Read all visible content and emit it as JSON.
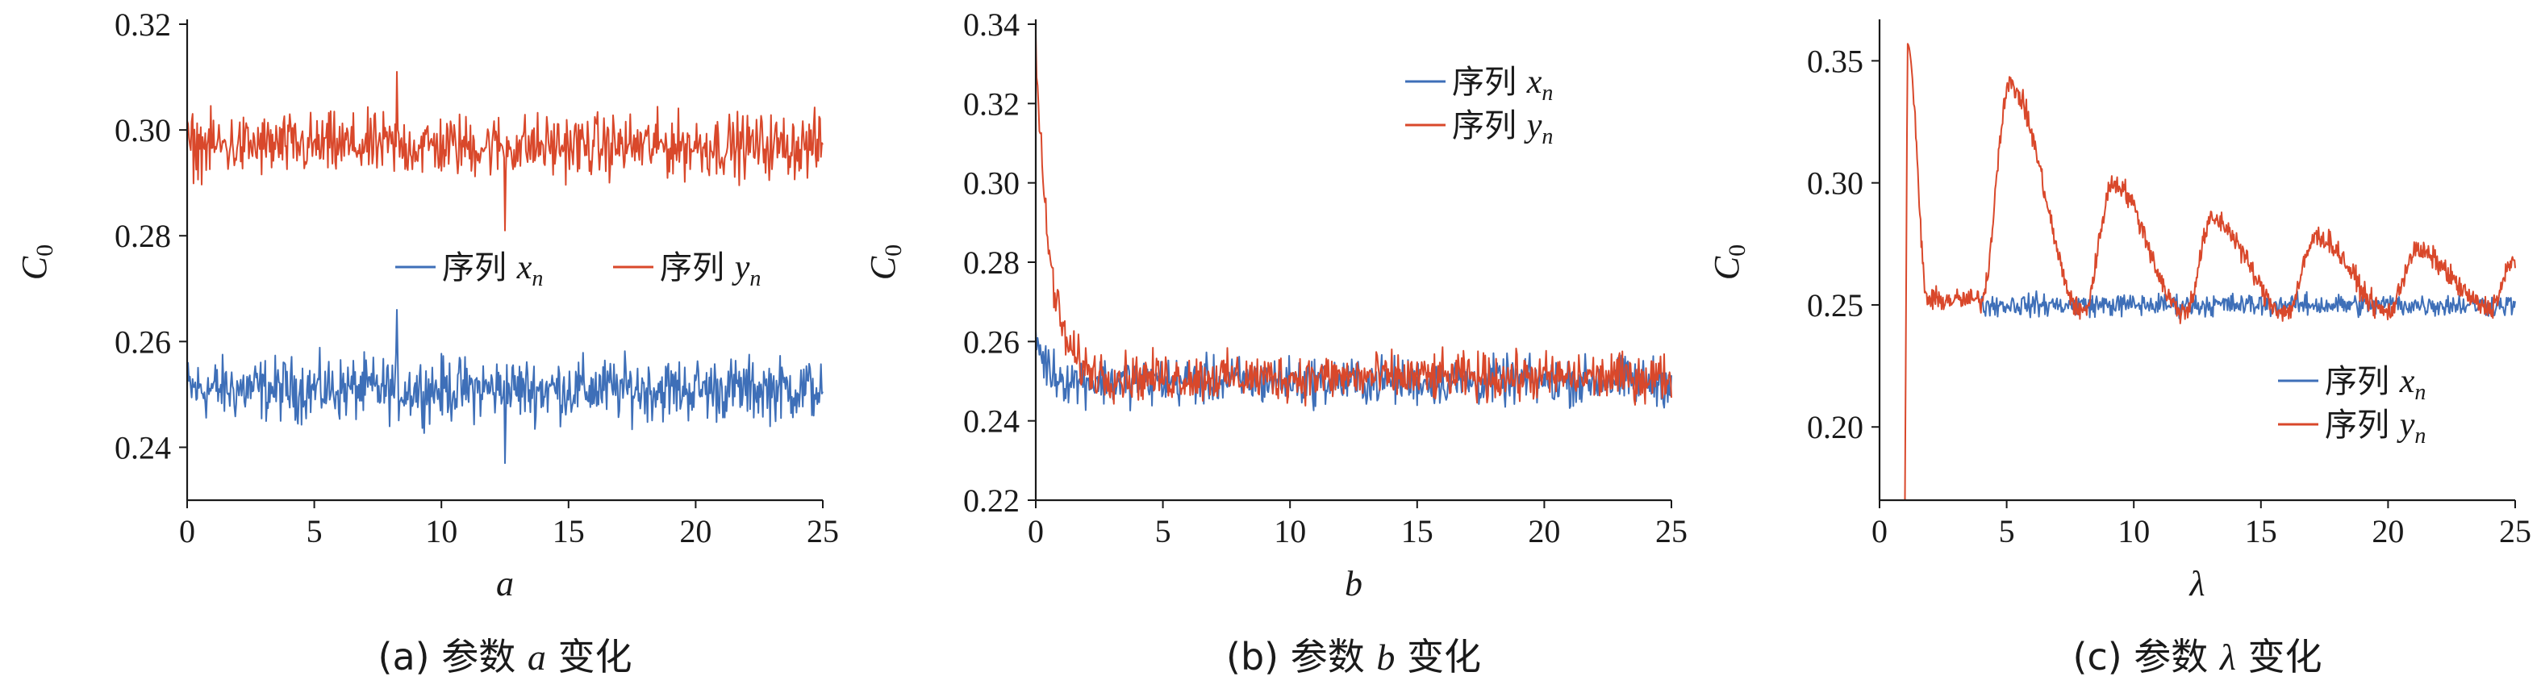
{
  "colors": {
    "x_series": "#3e6fb8",
    "y_series": "#d9482b",
    "axis": "#1a1a1a"
  },
  "chart_data": [
    {
      "type": "line",
      "caption": {
        "prefix": "(a) 参数 ",
        "var": "a",
        "suffix": " 变化"
      },
      "xlabel": "a",
      "ylabel": {
        "main": "C",
        "sub": "0"
      },
      "xlim": [
        0,
        25
      ],
      "ylim": [
        0.23,
        0.32
      ],
      "xticks": [
        0,
        5,
        10,
        15,
        20,
        25
      ],
      "xtick_labels": [
        "0",
        "5",
        "10",
        "15",
        "20",
        "25"
      ],
      "yticks": [
        0.24,
        0.26,
        0.28,
        0.3,
        0.32
      ],
      "ytick_labels": [
        "0.24",
        "0.26",
        "0.28",
        "0.30",
        "0.32"
      ],
      "legend": {
        "position": "middle-right",
        "layout": "horizontal",
        "entries": [
          {
            "label": "序列",
            "var": "x",
            "sub": "n"
          },
          {
            "label": "序列",
            "var": "y",
            "sub": "n"
          }
        ]
      },
      "series": [
        {
          "name": "序列 xn",
          "color": "#3e6fb8",
          "model": {
            "type": "noise",
            "mean": 0.251,
            "amplitude": 0.0045,
            "extreme_max": 0.266,
            "extreme_min": 0.237,
            "points": 700
          }
        },
        {
          "name": "序列 yn",
          "color": "#d9482b",
          "model": {
            "type": "noise",
            "mean": 0.297,
            "amplitude": 0.0045,
            "extreme_max": 0.311,
            "extreme_min": 0.281,
            "points": 700
          }
        }
      ]
    },
    {
      "type": "line",
      "caption": {
        "prefix": "(b) 参数 ",
        "var": "b",
        "suffix": " 变化"
      },
      "xlabel": "b",
      "ylabel": {
        "main": "C",
        "sub": "0"
      },
      "xlim": [
        0,
        25
      ],
      "ylim": [
        0.22,
        0.34
      ],
      "xticks": [
        0,
        5,
        10,
        15,
        20,
        25
      ],
      "xtick_labels": [
        "0",
        "5",
        "10",
        "15",
        "20",
        "25"
      ],
      "yticks": [
        0.22,
        0.24,
        0.26,
        0.28,
        0.3,
        0.32,
        0.34
      ],
      "ytick_labels": [
        "0.22",
        "0.24",
        "0.26",
        "0.28",
        "0.30",
        "0.32",
        "0.34"
      ],
      "legend": {
        "position": "top-right",
        "layout": "vertical",
        "entries": [
          {
            "label": "序列",
            "var": "x",
            "sub": "n"
          },
          {
            "label": "序列",
            "var": "y",
            "sub": "n"
          }
        ]
      },
      "series": [
        {
          "name": "序列 xn",
          "color": "#3e6fb8",
          "model": {
            "type": "decay",
            "mean": 0.25,
            "amplitude": 0.0045,
            "start": 0.262,
            "decay": 0.4,
            "points": 700
          }
        },
        {
          "name": "序列 yn",
          "color": "#d9482b",
          "model": {
            "type": "decay",
            "mean": 0.251,
            "amplitude": 0.0045,
            "start": 0.334,
            "decay": 0.55,
            "points": 700
          }
        }
      ]
    },
    {
      "type": "line",
      "caption": {
        "prefix": "(c) 参数 ",
        "var": "λ",
        "suffix": " 变化"
      },
      "xlabel": "λ",
      "ylabel": {
        "main": "C",
        "sub": "0"
      },
      "xlim": [
        0,
        25
      ],
      "ylim": [
        0.17,
        0.365
      ],
      "xticks": [
        0,
        5,
        10,
        15,
        20,
        25
      ],
      "xtick_labels": [
        "0",
        "5",
        "10",
        "15",
        "20",
        "25"
      ],
      "yticks": [
        0.2,
        0.25,
        0.3,
        0.35
      ],
      "ytick_labels": [
        "0.20",
        "0.25",
        "0.30",
        "0.35"
      ],
      "legend": {
        "position": "bottom-right",
        "layout": "vertical",
        "entries": [
          {
            "label": "序列",
            "var": "x",
            "sub": "n"
          },
          {
            "label": "序列",
            "var": "y",
            "sub": "n"
          }
        ]
      },
      "series": [
        {
          "name": "序列 xn",
          "color": "#3e6fb8",
          "model": {
            "type": "noise_from",
            "x_start": 4.0,
            "mean": 0.25,
            "amplitude": 0.0035,
            "points": 620
          }
        },
        {
          "name": "序列 yn",
          "color": "#d9482b",
          "model": {
            "type": "oscillation",
            "x_start": 1.0,
            "mean": 0.252,
            "amplitude": 0.0035,
            "initial_spike": {
              "x": 1.1,
              "y": 0.357,
              "low": 0.17
            },
            "peaks": [
              {
                "x": 5.1,
                "y": 0.34
              },
              {
                "x": 9.2,
                "y": 0.3
              },
              {
                "x": 13.1,
                "y": 0.285
              },
              {
                "x": 17.2,
                "y": 0.278
              },
              {
                "x": 21.1,
                "y": 0.272
              }
            ],
            "troughs": [
              {
                "x": 8.0,
                "y": 0.247
              },
              {
                "x": 12.0,
                "y": 0.247
              },
              {
                "x": 16.0,
                "y": 0.247
              },
              {
                "x": 20.0,
                "y": 0.247
              },
              {
                "x": 24.0,
                "y": 0.249
              }
            ],
            "end_value": 0.268,
            "points": 900
          }
        }
      ]
    }
  ]
}
